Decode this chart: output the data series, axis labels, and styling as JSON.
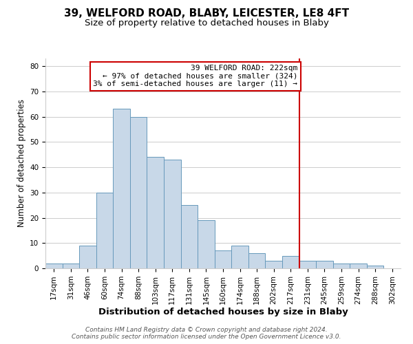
{
  "title": "39, WELFORD ROAD, BLABY, LEICESTER, LE8 4FT",
  "subtitle": "Size of property relative to detached houses in Blaby",
  "xlabel": "Distribution of detached houses by size in Blaby",
  "ylabel": "Number of detached properties",
  "bar_labels": [
    "17sqm",
    "31sqm",
    "46sqm",
    "60sqm",
    "74sqm",
    "88sqm",
    "103sqm",
    "117sqm",
    "131sqm",
    "145sqm",
    "160sqm",
    "174sqm",
    "188sqm",
    "202sqm",
    "217sqm",
    "231sqm",
    "245sqm",
    "259sqm",
    "274sqm",
    "288sqm",
    "302sqm"
  ],
  "bar_heights": [
    2,
    2,
    9,
    30,
    63,
    60,
    44,
    43,
    25,
    19,
    7,
    9,
    6,
    3,
    5,
    3,
    3,
    2,
    2,
    1,
    0
  ],
  "bar_color": "#c8d8e8",
  "bar_edgecolor": "#6699bb",
  "vline_x": 14.5,
  "vline_color": "#cc0000",
  "annotation_title": "39 WELFORD ROAD: 222sqm",
  "annotation_line1": "← 97% of detached houses are smaller (324)",
  "annotation_line2": "3% of semi-detached houses are larger (11) →",
  "annotation_box_color": "#ffffff",
  "annotation_box_edgecolor": "#cc0000",
  "ylim": [
    0,
    83
  ],
  "footer1": "Contains HM Land Registry data © Crown copyright and database right 2024.",
  "footer2": "Contains public sector information licensed under the Open Government Licence v3.0.",
  "background_color": "#ffffff",
  "title_fontsize": 11,
  "subtitle_fontsize": 9.5,
  "xlabel_fontsize": 9.5,
  "ylabel_fontsize": 8.5,
  "tick_fontsize": 7.5,
  "footer_fontsize": 6.5,
  "ann_fontsize": 8.0
}
